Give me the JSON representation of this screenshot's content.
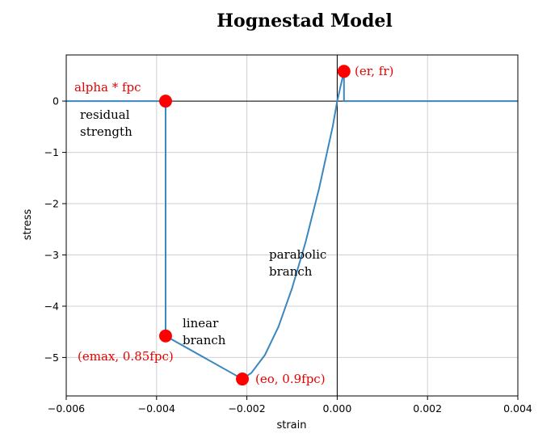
{
  "chart_data": {
    "type": "line",
    "title": "Hognestad Model",
    "xlabel": "strain",
    "ylabel": "stress",
    "xlim": [
      -0.006,
      0.004
    ],
    "ylim": [
      -5.75,
      0.9
    ],
    "grid": true,
    "xticks": [
      {
        "value": -0.006,
        "label": "−0.006"
      },
      {
        "value": -0.004,
        "label": "−0.004"
      },
      {
        "value": -0.002,
        "label": "−0.002"
      },
      {
        "value": 0.0,
        "label": "0.000"
      },
      {
        "value": 0.002,
        "label": "0.002"
      },
      {
        "value": 0.004,
        "label": "0.004"
      }
    ],
    "yticks": [
      {
        "value": 0,
        "label": "0"
      },
      {
        "value": -1,
        "label": "−1"
      },
      {
        "value": -2,
        "label": "−2"
      },
      {
        "value": -3,
        "label": "−3"
      },
      {
        "value": -4,
        "label": "−4"
      },
      {
        "value": -5,
        "label": "−5"
      }
    ],
    "series": [
      {
        "color": "#3a87c0",
        "x": [
          -0.006,
          -0.0038,
          -0.0038,
          -0.0038,
          -0.0021,
          -0.0019,
          -0.0016,
          -0.0013,
          -0.001,
          -0.0007,
          -0.0004,
          -0.0001,
          0.0,
          0.00015,
          0.00015,
          0.0002,
          0.004
        ],
        "y": [
          0,
          0,
          -0.01,
          -4.58,
          -5.42,
          -5.3,
          -4.95,
          -4.4,
          -3.65,
          -2.75,
          -1.7,
          -0.5,
          0.0,
          0.58,
          0.0,
          0.0,
          0.0
        ]
      }
    ],
    "markers": [
      {
        "x": -0.0038,
        "y": 0.0,
        "color": "#ff0000"
      },
      {
        "x": -0.0038,
        "y": -4.58,
        "color": "#ff0000"
      },
      {
        "x": -0.0021,
        "y": -5.42,
        "color": "#ff0000"
      },
      {
        "x": 0.00015,
        "y": 0.58,
        "color": "#ff0000"
      }
    ],
    "reference_lines": [
      {
        "axis": "x",
        "value": 0.0,
        "color": "#000000"
      },
      {
        "axis": "y",
        "value": 0.0,
        "color": "#000000"
      }
    ],
    "annotations": [
      {
        "id": "alpha",
        "text": "alpha * fpc",
        "color": "red"
      },
      {
        "id": "residual1",
        "text": "residual",
        "color": "black"
      },
      {
        "id": "residual2",
        "text": "strength",
        "color": "black"
      },
      {
        "id": "parabolic1",
        "text": "parabolic",
        "color": "black"
      },
      {
        "id": "parabolic2",
        "text": "branch",
        "color": "black"
      },
      {
        "id": "linear1",
        "text": "linear",
        "color": "black"
      },
      {
        "id": "linear2",
        "text": "branch",
        "color": "black"
      },
      {
        "id": "emax",
        "text": "(emax,  0.85fpc)",
        "color": "red"
      },
      {
        "id": "eo",
        "text": "(eo, 0.9fpc)",
        "color": "red"
      },
      {
        "id": "er",
        "text": "(er, fr)",
        "color": "red"
      }
    ]
  }
}
